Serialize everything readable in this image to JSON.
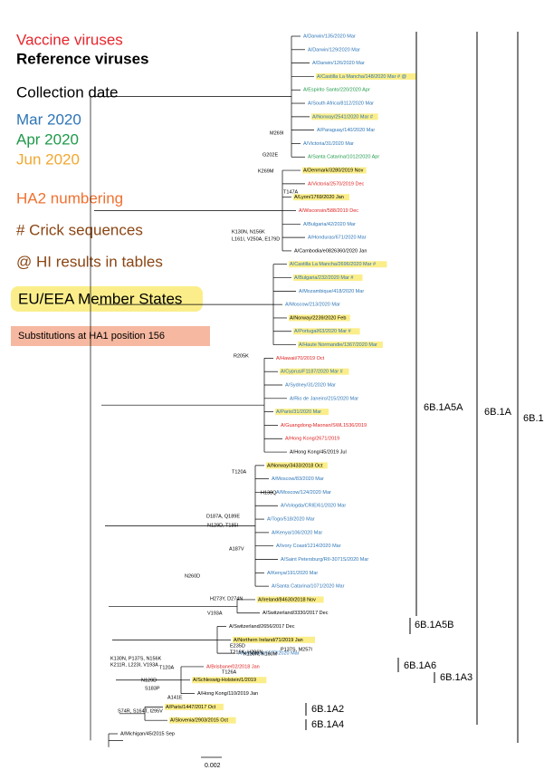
{
  "legend": {
    "vaccine": "Vaccine viruses",
    "reference": "Reference viruses",
    "date_heading": "Collection date",
    "dates": [
      {
        "label": "Mar 2020",
        "color": "#2e75b6"
      },
      {
        "label": "Apr 2020",
        "color": "#1f9a4a"
      },
      {
        "label": "Jun 2020",
        "color": "#f0a830"
      }
    ],
    "ha2": "HA2 numbering",
    "crick": "# Crick sequences",
    "hi": "@ HI results in tables",
    "eu": "EU/EEA Member States",
    "sub156": "Substitutions at HA1 position 156"
  },
  "clades": [
    "6B.1A5A",
    "6B.1A",
    "6B.1",
    "6B.1A5B",
    "6B.1A6",
    "6B.1A3",
    "6B.1A2",
    "6B.1A4"
  ],
  "mutations": [
    "M269I",
    "G202E",
    "K269M",
    "T147A",
    "K130N, N156K",
    "L161I, V250A, E179D",
    "R205K",
    "T120A",
    "H138Q",
    "D187A, Q189E",
    "N129D, T185I",
    "A187V",
    "N260D",
    "H273Y, D274N",
    "V193A",
    "E235D",
    "T216K, H296N",
    "K130N, K160M",
    "P137S, M257I",
    "T126A",
    "K130N, P137S, N156K",
    "K211R, L223I, V193A",
    "T120A",
    "N129D",
    "S183P",
    "A141E",
    "S74R, S164T, I295V"
  ],
  "leaves": [
    {
      "label": "A/Darwin/135/2020 Mar",
      "color": "#2e75b6"
    },
    {
      "label": "A/Darwin/129/2020 Mar",
      "color": "#2e75b6"
    },
    {
      "label": "A/Darwin/126/2020 Mar",
      "color": "#2e75b6"
    },
    {
      "label": "A/Castilla La Mancha/148/2020 Mar # @",
      "color": "#2e75b6",
      "eu": true
    },
    {
      "label": "A/Espirito Santo/220/2020 Apr",
      "color": "#1f9a4a"
    },
    {
      "label": "A/South Africa/8112/2020 Mar",
      "color": "#2e75b6"
    },
    {
      "label": "A/Norway/2541/2020 Mar #",
      "color": "#2e75b6",
      "eu": true
    },
    {
      "label": "A/Paraguay/140/2020 Mar",
      "color": "#2e75b6"
    },
    {
      "label": "A/Victoria/31/2020 Mar",
      "color": "#2e75b6"
    },
    {
      "label": "A/Santa Catarina/1012/2020 Apr",
      "color": "#1f9a4a"
    },
    {
      "label": "A/Denmark/3280/2019 Nov",
      "color": "#000000",
      "eu": true
    },
    {
      "label": "A/Victoria/2570/2019 Dec",
      "color": "#e02020"
    },
    {
      "label": "A/Lyon/1769/2020 Jan",
      "color": "#000000",
      "eu": true
    },
    {
      "label": "A/Wisconsin/588/2019 Dec",
      "color": "#e02020"
    },
    {
      "label": "A/Bulgaria/42/2020 Mar",
      "color": "#2e75b6"
    },
    {
      "label": "A/Honduras/671/2020 Mar",
      "color": "#2e75b6"
    },
    {
      "label": "A/Cambodia/e0826360/2020 Jan",
      "color": "#000000"
    },
    {
      "label": "A/Castilla La Mancha/2696/2020 Mar #",
      "color": "#2e75b6",
      "eu": true
    },
    {
      "label": "A/Bulgaria/232/2020 Mar #",
      "color": "#2e75b6",
      "eu": true
    },
    {
      "label": "A/Mozambique/418/2020 Mar",
      "color": "#2e75b6"
    },
    {
      "label": "A/Moscow/213/2020 Mar",
      "color": "#2e75b6"
    },
    {
      "label": "A/Norway/2239/2020 Feb",
      "color": "#000000",
      "eu": true
    },
    {
      "label": "A/Portugal/63/2020 Mar #",
      "color": "#2e75b6",
      "eu": true
    },
    {
      "label": "A/Haute Normandie/1367/2020 Mar",
      "color": "#2e75b6",
      "eu": true
    },
    {
      "label": "A/Hawaii/70/2019 Oct",
      "color": "#e02020"
    },
    {
      "label": "A/Cyprus/F1187/2020 Mar #",
      "color": "#2e75b6",
      "eu": true
    },
    {
      "label": "A/Sydney/31/2020 Mar",
      "color": "#2e75b6"
    },
    {
      "label": "A/Rio de Janeiro/215/2020 Mar",
      "color": "#2e75b6"
    },
    {
      "label": "A/Paris/31/2020 Mar",
      "color": "#2e75b6",
      "eu": true
    },
    {
      "label": "A/Guangdong-Maonan/SWL1536/2019",
      "color": "#e02020"
    },
    {
      "label": "A/Hong Kong/2671/2019",
      "color": "#e02020"
    },
    {
      "label": "A/Hong Kong/45/2019 Jul",
      "color": "#000000"
    },
    {
      "label": "A/Norway/3433/2018 Oct",
      "color": "#000000",
      "eu": true
    },
    {
      "label": "A/Moscow/83/2020 Mar",
      "color": "#2e75b6"
    },
    {
      "label": "A/Moscow/124/2020 Mar",
      "color": "#2e75b6"
    },
    {
      "label": "A/Vologda/CRIE/61/2020 Mar",
      "color": "#2e75b6"
    },
    {
      "label": "A/Togo/518/2020 Mar",
      "color": "#2e75b6"
    },
    {
      "label": "A/Kenya/106/2020 Mar",
      "color": "#2e75b6"
    },
    {
      "label": "A/Ivory Coast/1214/2020 Mar",
      "color": "#2e75b6"
    },
    {
      "label": "A/Saint Petersburg/RII-3071S/2020 Mar",
      "color": "#2e75b6"
    },
    {
      "label": "A/Kenya/191/2020 Mar",
      "color": "#2e75b6"
    },
    {
      "label": "A/Santa Catarina/1071/2020 Mar",
      "color": "#2e75b6"
    },
    {
      "label": "A/Ireland/84630/2018 Nov",
      "color": "#000000",
      "eu": true
    },
    {
      "label": "A/Switzerland/3330/2017 Dec",
      "color": "#000000"
    },
    {
      "label": "A/Switzerland/2656/2017 Dec",
      "color": "#000000"
    },
    {
      "label": "A/Northern Ireland/71/2019 Jan",
      "color": "#000000",
      "eu": true
    },
    {
      "label": "A/Honduras/6577/2020 Mar",
      "color": "#2e75b6"
    },
    {
      "label": "A/Brisbane/02/2018 Jan",
      "color": "#e02020"
    },
    {
      "label": "A/Schleswig-Holstein/1/2019",
      "color": "#000000",
      "eu": true
    },
    {
      "label": "A/Hong Kong/110/2019 Jan",
      "color": "#000000"
    },
    {
      "label": "A/Paris/1447/2017 Oct",
      "color": "#000000",
      "eu": true
    },
    {
      "label": "A/Slovenia/2903/2015 Oct",
      "color": "#000000",
      "eu": true
    },
    {
      "label": "A/Michigan/45/2015 Sep",
      "color": "#000000"
    }
  ],
  "scale_bar": "0.002"
}
